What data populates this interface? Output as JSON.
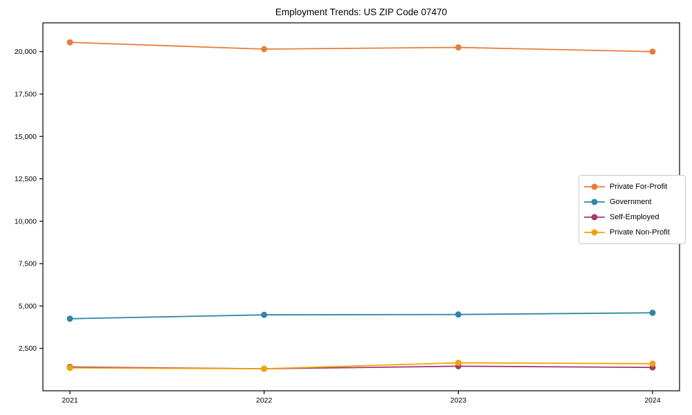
{
  "chart_data": {
    "type": "line",
    "title": "Employment Trends: US ZIP Code 07470",
    "xlabel": "",
    "ylabel": "",
    "categories": [
      "2021",
      "2022",
      "2023",
      "2024"
    ],
    "series": [
      {
        "name": "Private For-Profit",
        "color": "#E87D3B",
        "values": [
          20550,
          20150,
          20250,
          20000
        ]
      },
      {
        "name": "Government",
        "color": "#2E86AB",
        "values": [
          4250,
          4480,
          4500,
          4600
        ]
      },
      {
        "name": "Self-Employed",
        "color": "#A23B72",
        "values": [
          1400,
          1300,
          1450,
          1380
        ]
      },
      {
        "name": "Private Non-Profit",
        "color": "#F1A208",
        "values": [
          1350,
          1300,
          1650,
          1600
        ]
      }
    ],
    "ylim": [
      0,
      21700
    ],
    "yticks": [
      2500,
      5000,
      7500,
      10000,
      12500,
      15000,
      17500,
      20000
    ],
    "ytick_labels": [
      "2,500",
      "5,000",
      "7,500",
      "10,000",
      "12,500",
      "15,000",
      "17,500",
      "20,000"
    ],
    "grid": false,
    "legend_position": "center right",
    "marker": "circle",
    "axis_color": "#000000"
  }
}
